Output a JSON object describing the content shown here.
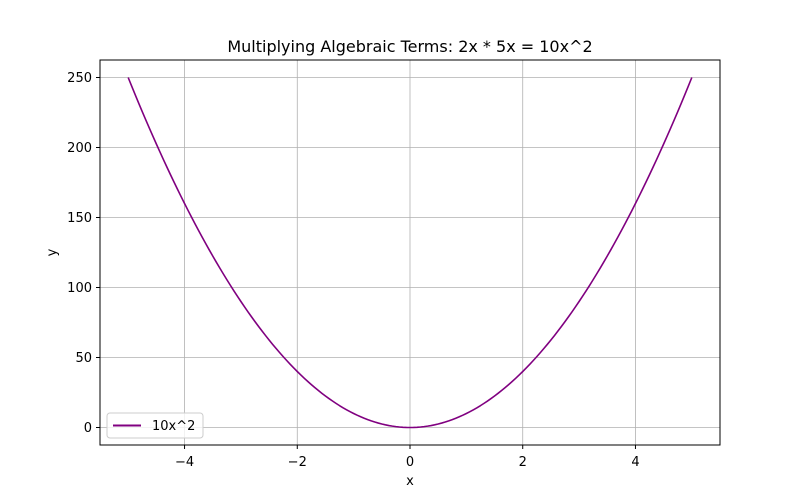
{
  "chart_data": {
    "type": "line",
    "title": "Multiplying Algebraic Terms: 2x * 5x = 10x^2",
    "xlabel": "x",
    "ylabel": "y",
    "xlim": [
      -5.5,
      5.5
    ],
    "ylim": [
      -12.5,
      262.5
    ],
    "xticks": [
      -4,
      -2,
      0,
      2,
      4
    ],
    "xtick_labels": [
      "−4",
      "−2",
      "0",
      "2",
      "4"
    ],
    "yticks": [
      0,
      50,
      100,
      150,
      200,
      250
    ],
    "ytick_labels": [
      "0",
      "50",
      "100",
      "150",
      "200",
      "250"
    ],
    "grid": true,
    "legend_position": "lower-left",
    "series": [
      {
        "name": "10x^2",
        "color": "#800080",
        "x": [
          -5,
          -4.5,
          -4,
          -3.5,
          -3,
          -2.5,
          -2,
          -1.5,
          -1,
          -0.5,
          0,
          0.5,
          1,
          1.5,
          2,
          2.5,
          3,
          3.5,
          4,
          4.5,
          5
        ],
        "y": [
          250,
          202.5,
          160,
          122.5,
          90,
          62.5,
          40,
          22.5,
          10,
          2.5,
          0,
          2.5,
          10,
          22.5,
          40,
          62.5,
          90,
          122.5,
          160,
          202.5,
          250
        ]
      }
    ]
  }
}
